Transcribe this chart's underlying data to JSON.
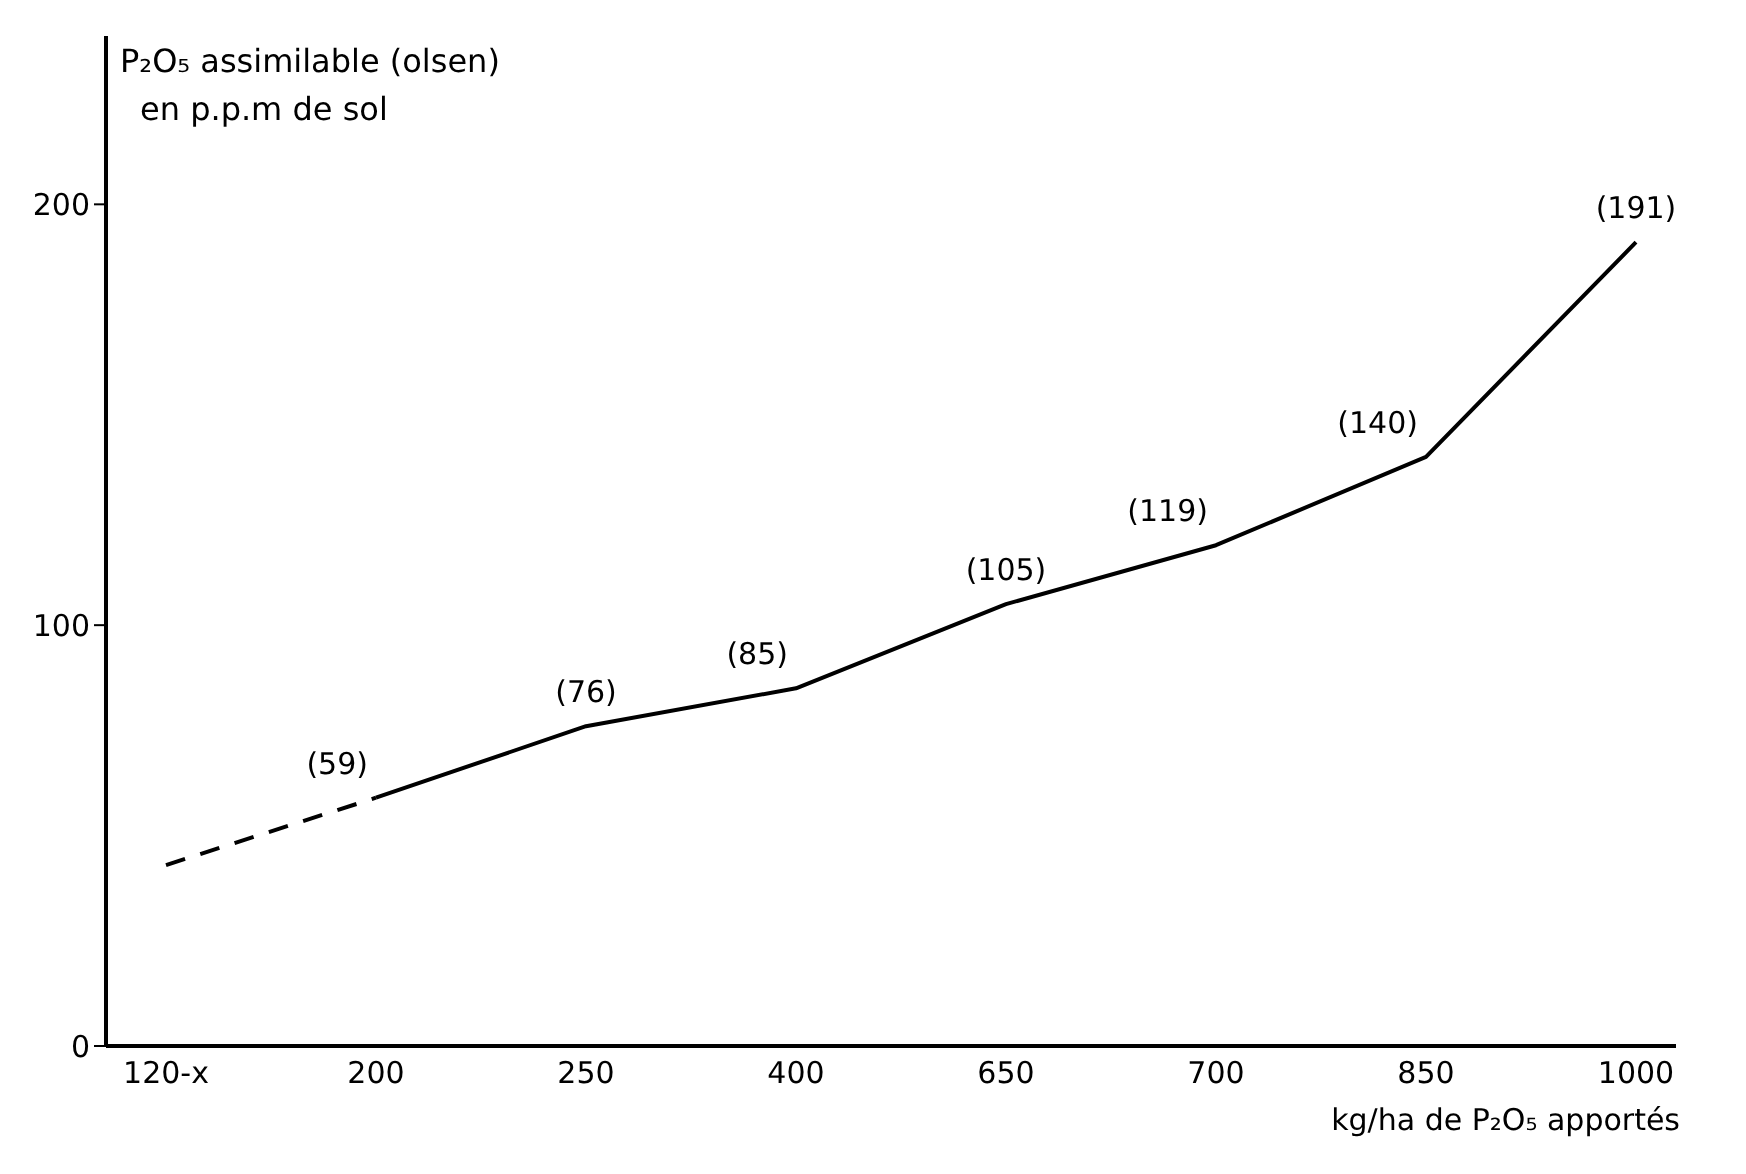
{
  "chart_data": {
    "type": "line",
    "ylabel": "P₂O₅ assimilable (olsen)\nen p.p.m de sol",
    "xlabel": "kg/ha de P₂O₅ apportés",
    "categories": [
      "120-x",
      "200",
      "250",
      "400",
      "650",
      "700",
      "850",
      "1000"
    ],
    "series": [
      {
        "color": "#000000",
        "line_style": "dashed",
        "values": [
          43,
          59,
          null,
          null,
          null,
          null,
          null,
          null
        ]
      },
      {
        "color": "#000000",
        "line_style": "solid",
        "values": [
          null,
          59,
          76,
          85,
          105,
          119,
          140,
          191
        ],
        "value_labels": [
          null,
          "(59)",
          "(76)",
          "(85)",
          "(105)",
          "(119)",
          "(140)",
          "(191)"
        ]
      }
    ],
    "ylim": [
      0,
      240
    ],
    "yticks": [
      0,
      100,
      200
    ],
    "marker": "none"
  }
}
